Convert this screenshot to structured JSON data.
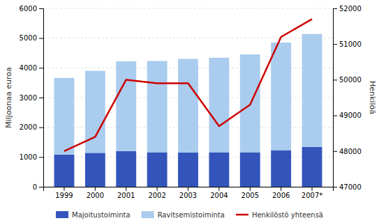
{
  "chart_data": {
    "type": "bar",
    "categories": [
      "1999",
      "2000",
      "2001",
      "2002",
      "2003",
      "2004",
      "2005",
      "2006",
      "2007*"
    ],
    "series": [
      {
        "name": "Majoitustoiminta",
        "color": "#3355bb",
        "values": [
          1080,
          1140,
          1200,
          1160,
          1150,
          1160,
          1160,
          1230,
          1340
        ]
      },
      {
        "name": "Ravitsemistoiminta",
        "color": "#aaccee",
        "values": [
          2580,
          2760,
          3020,
          3070,
          3150,
          3180,
          3290,
          3620,
          3800
        ]
      },
      {
        "name": "Henkilöstö yhteensä",
        "color": "#cc0000",
        "type": "line",
        "axis": "y2",
        "values": [
          48000,
          48400,
          50000,
          49900,
          49900,
          48700,
          49300,
          51200,
          51700
        ]
      }
    ],
    "ylabel": "Miljoonaa euroa",
    "y2label": "Henkilöä",
    "ylim": [
      0,
      6000
    ],
    "yticks": [
      0,
      1000,
      2000,
      3000,
      4000,
      5000,
      6000
    ],
    "y2lim": [
      47000,
      52000
    ],
    "y2ticks": [
      47000,
      48000,
      49000,
      50000,
      51000,
      52000
    ],
    "stacked": true,
    "grid": true,
    "legend": "bottom"
  }
}
